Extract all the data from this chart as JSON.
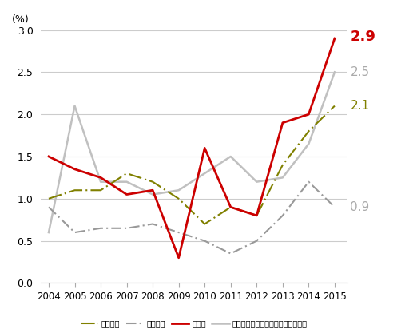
{
  "years": [
    2004,
    2005,
    2006,
    2007,
    2008,
    2009,
    2010,
    2011,
    2012,
    2013,
    2014,
    2015
  ],
  "zensangyo": [
    1.0,
    1.1,
    1.1,
    1.3,
    1.2,
    1.0,
    0.7,
    0.9,
    0.8,
    1.4,
    1.8,
    2.1
  ],
  "oroshiuri": [
    0.9,
    0.6,
    0.65,
    0.65,
    0.7,
    0.6,
    0.5,
    0.35,
    0.5,
    0.8,
    1.2,
    0.9
  ],
  "kouri": [
    1.5,
    1.35,
    1.25,
    1.05,
    1.1,
    0.3,
    1.6,
    0.9,
    0.8,
    1.9,
    2.0,
    2.9
  ],
  "shokuhin": [
    0.6,
    2.1,
    1.2,
    1.2,
    1.05,
    1.1,
    1.3,
    1.5,
    1.2,
    1.25,
    1.65,
    2.5
  ],
  "zensangyo_color": "#808000",
  "oroshiuri_color": "#999999",
  "kouri_color": "#cc0000",
  "shokuhin_color": "#c0c0c0",
  "end_labels": {
    "kouri": "2.9",
    "shokuhin": "2.5",
    "zensangyo": "2.1",
    "oroshiuri": "0.9"
  },
  "end_label_colors": {
    "kouri": "#cc0000",
    "shokuhin": "#aaaaaa",
    "zensangyo": "#808000",
    "oroshiuri": "#aaaaaa"
  },
  "ylim": [
    0.0,
    3.0
  ],
  "yticks": [
    0.0,
    0.5,
    1.0,
    1.5,
    2.0,
    2.5,
    3.0
  ],
  "ylabel": "(%)",
  "legend_labels": [
    "・全産業",
    "・卧売業",
    "小売業",
    "食料品、飲料・たばこ・飼料製造業"
  ],
  "background_color": "#ffffff",
  "grid_color": "#cccccc",
  "xlim_left": 2003.7,
  "xlim_right": 2015.5
}
